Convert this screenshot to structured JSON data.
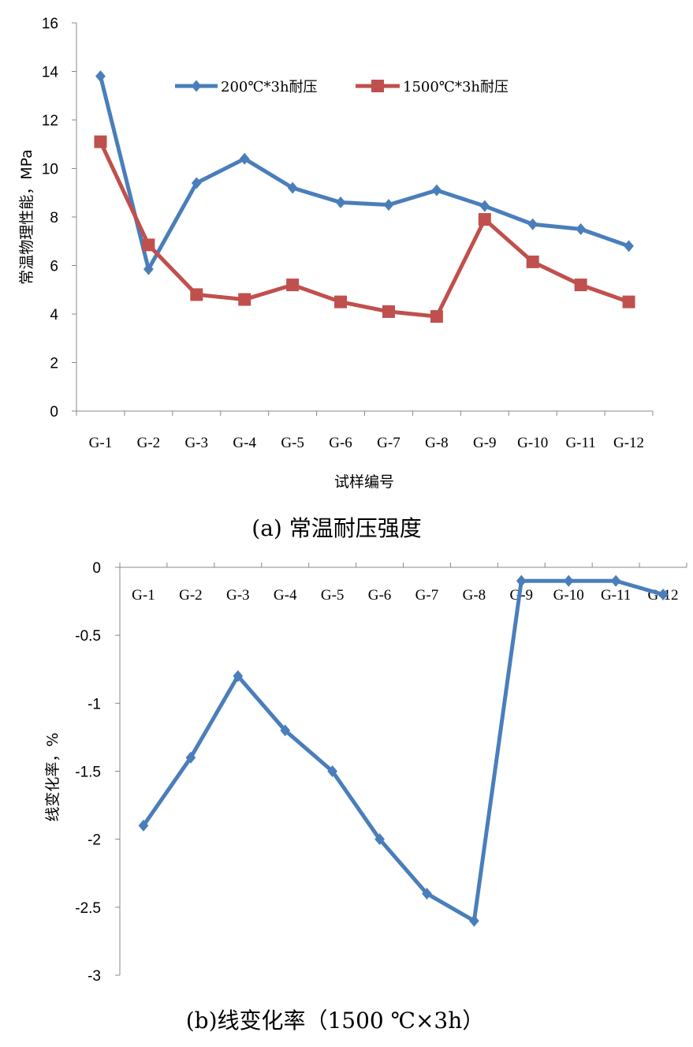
{
  "chart_data": [
    {
      "type": "line",
      "caption": "(a)   常温耐压强度",
      "xlabel": "试样编号",
      "ylabel": "常温物理性能，MPa",
      "categories": [
        "G-1",
        "G-2",
        "G-3",
        "G-4",
        "G-5",
        "G-6",
        "G-7",
        "G-8",
        "G-9",
        "G-10",
        "G-11",
        "G-12"
      ],
      "ylim": [
        0,
        16
      ],
      "yticks": [
        0,
        2,
        4,
        6,
        8,
        10,
        12,
        14,
        16
      ],
      "legend_position": "top",
      "grid": false,
      "series": [
        {
          "name": "200℃*3h耐压",
          "color": "#4a7ebb",
          "marker": "diamond",
          "values": [
            13.8,
            5.85,
            9.4,
            10.4,
            9.2,
            8.6,
            8.5,
            9.1,
            8.45,
            7.7,
            7.5,
            6.8
          ]
        },
        {
          "name": "1500℃*3h耐压",
          "color": "#c0504d",
          "marker": "square",
          "values": [
            11.1,
            6.85,
            4.8,
            4.6,
            5.2,
            4.5,
            4.1,
            3.9,
            7.9,
            6.15,
            5.2,
            4.5
          ]
        }
      ]
    },
    {
      "type": "line",
      "caption": "(b)线变化率（1500  ℃×3h）",
      "xlabel": "",
      "ylabel": "线变化率，%",
      "categories": [
        "G-1",
        "G-2",
        "G-3",
        "G-4",
        "G-5",
        "G-6",
        "G-7",
        "G-8",
        "G-9",
        "G-10",
        "G-11",
        "G-12"
      ],
      "ylim": [
        -3,
        0
      ],
      "yticks": [
        0,
        -0.5,
        -1,
        -1.5,
        -2,
        -2.5,
        -3
      ],
      "xaxis_position": "top",
      "grid": false,
      "series": [
        {
          "color": "#4a7ebb",
          "marker": "diamond",
          "values": [
            -1.9,
            -1.4,
            -0.8,
            -1.2,
            -1.5,
            -2.0,
            -2.4,
            -2.6,
            -0.1,
            -0.1,
            -0.1,
            -0.2
          ]
        }
      ]
    }
  ]
}
